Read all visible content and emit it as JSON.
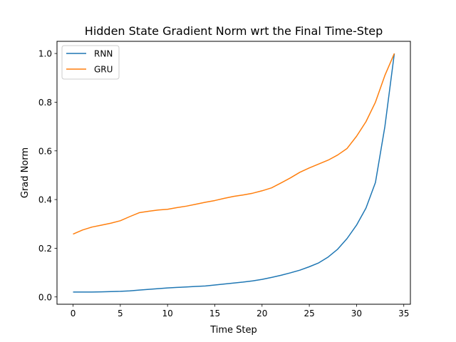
{
  "chart_data": {
    "type": "line",
    "title": "Hidden State Gradient Norm wrt the Final Time-Step",
    "xlabel": "Time Step",
    "ylabel": "Grad Norm",
    "xlim": [
      -1.7,
      35.7
    ],
    "ylim": [
      -0.03,
      1.05
    ],
    "xticks": [
      0,
      5,
      10,
      15,
      20,
      25,
      30,
      35
    ],
    "yticks": [
      0.0,
      0.2,
      0.4,
      0.6,
      0.8,
      1.0
    ],
    "xtick_labels": [
      "0",
      "5",
      "10",
      "15",
      "20",
      "25",
      "30",
      "35"
    ],
    "ytick_labels": [
      "0.0",
      "0.2",
      "0.4",
      "0.6",
      "0.8",
      "1.0"
    ],
    "grid": false,
    "legend": "top-left",
    "x": [
      0,
      1,
      2,
      3,
      4,
      5,
      6,
      7,
      8,
      9,
      10,
      11,
      12,
      13,
      14,
      15,
      16,
      17,
      18,
      19,
      20,
      21,
      22,
      23,
      24,
      25,
      26,
      27,
      28,
      29,
      30,
      31,
      32,
      33,
      34
    ],
    "series": [
      {
        "name": "RNN",
        "color": "#1f77b4",
        "values": [
          0.02,
          0.02,
          0.02,
          0.021,
          0.022,
          0.023,
          0.025,
          0.028,
          0.031,
          0.034,
          0.037,
          0.039,
          0.041,
          0.043,
          0.045,
          0.049,
          0.053,
          0.057,
          0.061,
          0.066,
          0.072,
          0.08,
          0.089,
          0.099,
          0.11,
          0.124,
          0.14,
          0.164,
          0.196,
          0.24,
          0.295,
          0.365,
          0.47,
          0.7,
          1.0
        ]
      },
      {
        "name": "GRU",
        "color": "#ff7f0e",
        "values": [
          0.258,
          0.275,
          0.287,
          0.295,
          0.303,
          0.313,
          0.33,
          0.346,
          0.352,
          0.357,
          0.36,
          0.367,
          0.373,
          0.381,
          0.389,
          0.396,
          0.405,
          0.413,
          0.419,
          0.426,
          0.436,
          0.448,
          0.468,
          0.489,
          0.512,
          0.53,
          0.546,
          0.562,
          0.583,
          0.61,
          0.66,
          0.72,
          0.8,
          0.91,
          1.0
        ]
      }
    ]
  }
}
